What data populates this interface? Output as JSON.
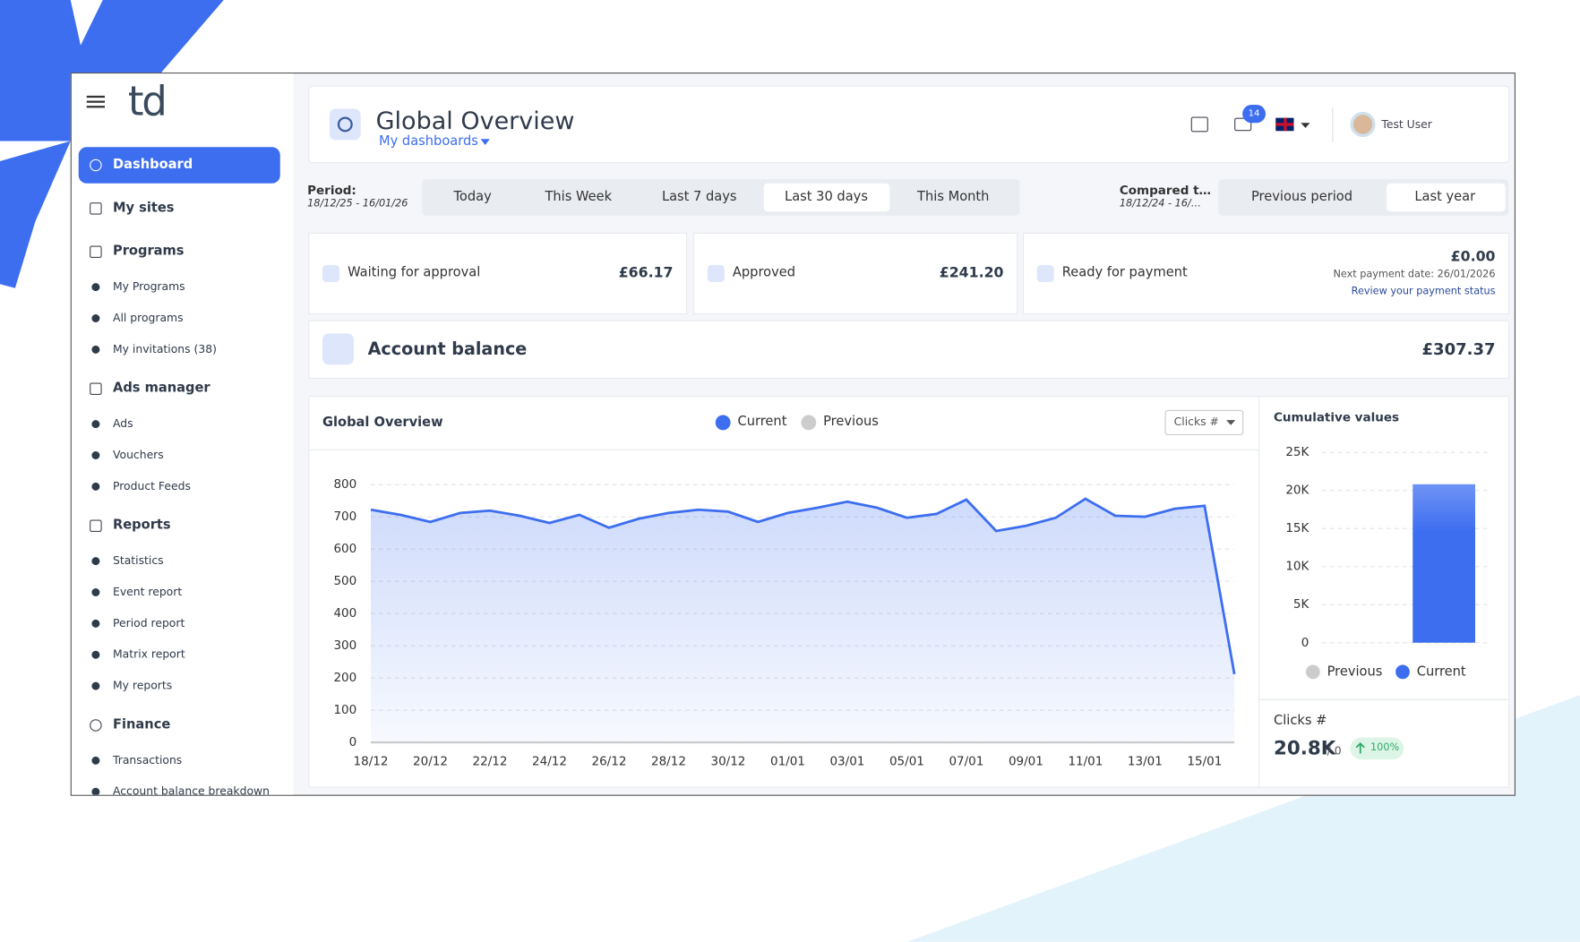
{
  "sidebar": {
    "logo": "td",
    "menu": [
      {
        "label": "Dashboard"
      },
      {
        "label": "My sites"
      },
      {
        "label": "Programs",
        "items": [
          "My Programs",
          "All programs",
          "My invitations (38)"
        ]
      },
      {
        "label": "Ads manager",
        "items": [
          "Ads",
          "Vouchers",
          "Product Feeds"
        ]
      },
      {
        "label": "Reports",
        "items": [
          "Statistics",
          "Event report",
          "Period report",
          "Matrix report",
          "My reports"
        ]
      },
      {
        "label": "Finance",
        "items": [
          "Transactions",
          "Account balance breakdown"
        ]
      }
    ]
  },
  "header": {
    "title": "Global Overview",
    "subtitle": "My dashboards",
    "notifications": 14,
    "user": "Test User"
  },
  "period": {
    "label": "Period:",
    "range": "18/12/25 - 16/01/26",
    "options": [
      "Today",
      "This Week",
      "Last 7 days",
      "Last 30 days",
      "This Month"
    ],
    "selected": 3
  },
  "compare": {
    "label": "Compared t…",
    "range": "18/12/24 - 16/…",
    "options": [
      "Previous period",
      "Last year"
    ],
    "selected": 1
  },
  "stats": [
    {
      "label": "Waiting for approval",
      "value": "£66.17"
    },
    {
      "label": "Approved",
      "value": "£241.20"
    },
    {
      "label": "Ready for payment",
      "value": "£0.00",
      "note": "Next payment date: 26/01/2026",
      "link": "Review your payment status"
    }
  ],
  "balance": {
    "label": "Account balance",
    "value": "£307.37"
  },
  "main_chart": {
    "type": "line",
    "title": "Global Overview",
    "metric": "Clicks #",
    "categories": [
      "18/12",
      null,
      "20/12",
      null,
      "22/12",
      null,
      "24/12",
      null,
      "26/12",
      null,
      "28/12",
      null,
      "30/12",
      null,
      "01/01",
      null,
      "03/01",
      null,
      "05/01",
      null,
      "07/01",
      null,
      "09/01",
      null,
      "11/01",
      null,
      "13/01",
      null,
      "15/01",
      null
    ],
    "series": [
      {
        "name": "Current",
        "color": "#3d6ef0",
        "values": [
          722,
          706,
          684,
          712,
          719,
          703,
          681,
          706,
          666,
          694,
          712,
          722,
          716,
          684,
          712,
          728,
          747,
          728,
          697,
          709,
          753,
          656,
          672,
          697,
          756,
          703,
          700,
          725,
          734,
          212
        ]
      },
      {
        "name": "Previous",
        "color": "#cccccc",
        "values": [
          0,
          0,
          0,
          0,
          0,
          0,
          0,
          0,
          0,
          0,
          0,
          0,
          0,
          0,
          0,
          0,
          0,
          0,
          0,
          0,
          0,
          0,
          0,
          0,
          0,
          0,
          0,
          0,
          0,
          0
        ]
      }
    ],
    "ylim": [
      0,
      800
    ],
    "yticks": [
      0,
      100,
      200,
      300,
      400,
      500,
      600,
      700,
      800
    ],
    "grid": true
  },
  "cumulative_chart": {
    "type": "bar",
    "title": "Cumulative values",
    "series": [
      {
        "name": "Previous",
        "color": "#cccccc",
        "values": [
          0
        ]
      },
      {
        "name": "Current",
        "color": "#3d6ef0",
        "values": [
          20800
        ]
      }
    ],
    "ylim": [
      0,
      25000
    ],
    "yticks": [
      0,
      {
        "value": 5000,
        "label": "5K"
      },
      {
        "value": 10000,
        "label": "10K"
      },
      {
        "value": 15000,
        "label": "15K"
      },
      {
        "value": 20000,
        "label": "20K"
      },
      {
        "value": 25000,
        "label": "25K"
      }
    ],
    "grid": true
  },
  "summary": {
    "metric": "Clicks #",
    "value": "20.8K",
    "compare": "/ 0",
    "change": "100%"
  }
}
